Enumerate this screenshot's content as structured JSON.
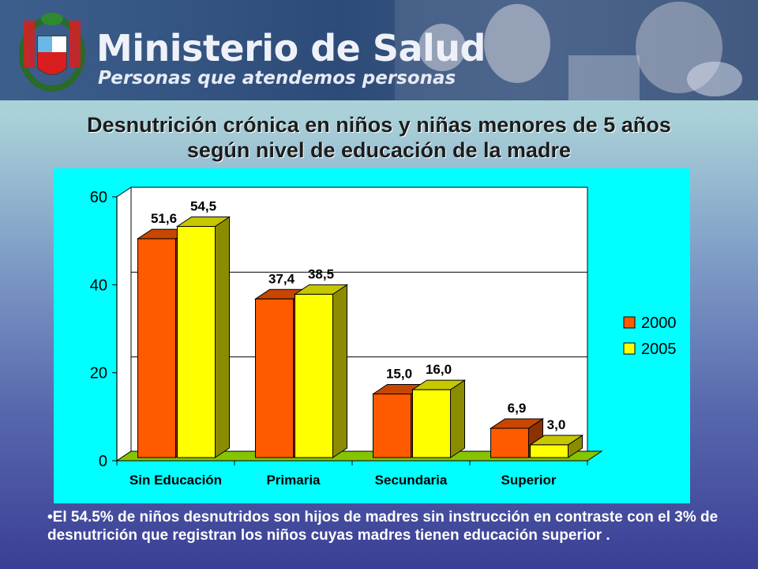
{
  "banner": {
    "ministry_name": "Ministerio de Salud",
    "slogan": "Personas que atendemos personas"
  },
  "slide": {
    "title_line1": "Desnutrición crónica en niños y niñas menores de 5 años",
    "title_line2": "según nivel de educación de la madre",
    "note": "•El 54.5% de niños desnutridos son hijos de madres sin instrucción en contraste con  el 3% de desnutrición que registran los niños cuyas madres tienen educación superior ."
  },
  "chart_data": {
    "type": "bar",
    "categories": [
      "Sin Educación",
      "Primaria",
      "Secundaria",
      "Superior"
    ],
    "series": [
      {
        "name": "2000",
        "values": [
          51.6,
          37.4,
          15.0,
          6.9
        ],
        "labels": [
          "51,6",
          "37,4",
          "15,0",
          "6,9"
        ],
        "color": "#ff5a00"
      },
      {
        "name": "2005",
        "values": [
          54.5,
          38.5,
          16.0,
          3.0
        ],
        "labels": [
          "54,5",
          "38,5",
          "16,0",
          "3,0"
        ],
        "color": "#ffff00"
      }
    ],
    "yticks": [
      0,
      20,
      40,
      60
    ],
    "ylim": [
      0,
      60
    ],
    "grid": true,
    "legend": "right",
    "style": "3d-bars",
    "floor_color": "#86c400"
  }
}
